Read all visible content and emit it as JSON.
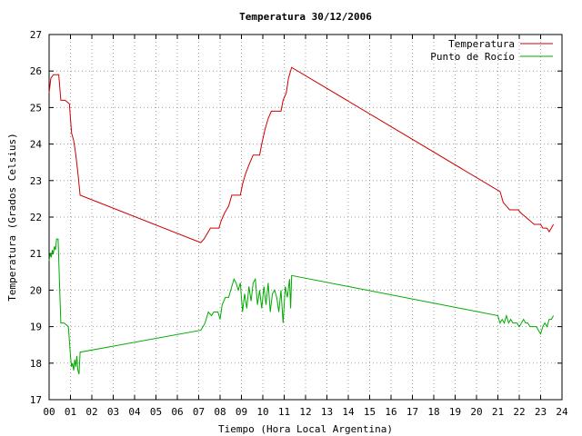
{
  "chart_data": {
    "type": "line",
    "title": "Temperatura 30/12/2006",
    "xlabel": "Tiempo (Hora Local Argentina)",
    "ylabel": "Temperatura (Grados Celsius)",
    "xlim": [
      0,
      24
    ],
    "ylim": [
      17,
      27
    ],
    "x_ticks": [
      "00",
      "01",
      "02",
      "03",
      "04",
      "05",
      "06",
      "07",
      "08",
      "09",
      "10",
      "11",
      "12",
      "13",
      "14",
      "15",
      "16",
      "17",
      "18",
      "19",
      "20",
      "21",
      "22",
      "23",
      "24"
    ],
    "y_ticks": [
      "17",
      "18",
      "19",
      "20",
      "21",
      "22",
      "23",
      "24",
      "25",
      "26",
      "27"
    ],
    "grid": true,
    "legend_position": "top-right",
    "series": [
      {
        "name": "Temperatura",
        "color": "#cc0000",
        "points": [
          [
            0.0,
            25.4
          ],
          [
            0.08,
            25.8
          ],
          [
            0.2,
            25.9
          ],
          [
            0.35,
            25.9
          ],
          [
            0.45,
            25.9
          ],
          [
            0.55,
            25.2
          ],
          [
            0.75,
            25.2
          ],
          [
            0.95,
            25.1
          ],
          [
            1.05,
            24.3
          ],
          [
            1.15,
            24.1
          ],
          [
            1.25,
            23.7
          ],
          [
            1.35,
            23.2
          ],
          [
            1.45,
            22.6
          ],
          [
            7.1,
            21.3
          ],
          [
            7.25,
            21.4
          ],
          [
            7.35,
            21.5
          ],
          [
            7.45,
            21.6
          ],
          [
            7.55,
            21.7
          ],
          [
            7.95,
            21.7
          ],
          [
            8.05,
            21.9
          ],
          [
            8.2,
            22.1
          ],
          [
            8.4,
            22.3
          ],
          [
            8.55,
            22.6
          ],
          [
            8.95,
            22.6
          ],
          [
            9.05,
            22.9
          ],
          [
            9.2,
            23.2
          ],
          [
            9.4,
            23.5
          ],
          [
            9.55,
            23.7
          ],
          [
            9.85,
            23.7
          ],
          [
            9.95,
            24.0
          ],
          [
            10.1,
            24.4
          ],
          [
            10.25,
            24.7
          ],
          [
            10.4,
            24.9
          ],
          [
            10.85,
            24.9
          ],
          [
            10.95,
            25.2
          ],
          [
            11.1,
            25.4
          ],
          [
            11.2,
            25.8
          ],
          [
            11.35,
            26.1
          ],
          [
            21.1,
            22.7
          ],
          [
            21.25,
            22.4
          ],
          [
            21.4,
            22.3
          ],
          [
            21.55,
            22.2
          ],
          [
            21.95,
            22.2
          ],
          [
            22.1,
            22.1
          ],
          [
            22.3,
            22.0
          ],
          [
            22.5,
            21.9
          ],
          [
            22.7,
            21.8
          ],
          [
            23.0,
            21.8
          ],
          [
            23.1,
            21.7
          ],
          [
            23.3,
            21.7
          ],
          [
            23.4,
            21.6
          ],
          [
            23.5,
            21.7
          ],
          [
            23.6,
            21.8
          ]
        ]
      },
      {
        "name": "Punto de Rocío",
        "color": "#00aa00",
        "points": [
          [
            0.0,
            20.8
          ],
          [
            0.05,
            21.0
          ],
          [
            0.1,
            20.9
          ],
          [
            0.15,
            21.1
          ],
          [
            0.2,
            21.0
          ],
          [
            0.25,
            21.2
          ],
          [
            0.3,
            21.1
          ],
          [
            0.35,
            21.4
          ],
          [
            0.42,
            21.4
          ],
          [
            0.48,
            20.3
          ],
          [
            0.55,
            19.1
          ],
          [
            0.7,
            19.1
          ],
          [
            0.9,
            19.0
          ],
          [
            1.0,
            18.2
          ],
          [
            1.05,
            17.9
          ],
          [
            1.1,
            18.0
          ],
          [
            1.15,
            17.8
          ],
          [
            1.2,
            18.1
          ],
          [
            1.25,
            17.9
          ],
          [
            1.3,
            18.2
          ],
          [
            1.35,
            17.8
          ],
          [
            1.4,
            17.7
          ],
          [
            1.45,
            18.3
          ],
          [
            7.1,
            18.9
          ],
          [
            7.2,
            19.0
          ],
          [
            7.3,
            19.1
          ],
          [
            7.45,
            19.4
          ],
          [
            7.6,
            19.3
          ],
          [
            7.7,
            19.4
          ],
          [
            7.9,
            19.4
          ],
          [
            8.0,
            19.2
          ],
          [
            8.1,
            19.6
          ],
          [
            8.25,
            19.8
          ],
          [
            8.4,
            19.8
          ],
          [
            8.55,
            20.1
          ],
          [
            8.65,
            20.3
          ],
          [
            8.75,
            20.2
          ],
          [
            8.85,
            20.0
          ],
          [
            8.95,
            20.2
          ],
          [
            9.05,
            19.4
          ],
          [
            9.15,
            19.9
          ],
          [
            9.25,
            19.5
          ],
          [
            9.35,
            20.1
          ],
          [
            9.45,
            19.7
          ],
          [
            9.55,
            20.2
          ],
          [
            9.65,
            20.3
          ],
          [
            9.75,
            19.6
          ],
          [
            9.85,
            20.0
          ],
          [
            9.95,
            19.5
          ],
          [
            10.05,
            20.1
          ],
          [
            10.15,
            19.6
          ],
          [
            10.25,
            20.2
          ],
          [
            10.35,
            19.4
          ],
          [
            10.45,
            19.9
          ],
          [
            10.55,
            20.0
          ],
          [
            10.65,
            19.8
          ],
          [
            10.75,
            19.4
          ],
          [
            10.85,
            20.0
          ],
          [
            10.95,
            19.1
          ],
          [
            11.05,
            20.1
          ],
          [
            11.15,
            19.8
          ],
          [
            11.25,
            20.3
          ],
          [
            11.3,
            19.5
          ],
          [
            11.35,
            20.4
          ],
          [
            21.0,
            19.3
          ],
          [
            21.05,
            19.2
          ],
          [
            21.1,
            19.1
          ],
          [
            21.2,
            19.2
          ],
          [
            21.3,
            19.1
          ],
          [
            21.4,
            19.3
          ],
          [
            21.5,
            19.1
          ],
          [
            21.6,
            19.2
          ],
          [
            21.7,
            19.1
          ],
          [
            21.9,
            19.1
          ],
          [
            22.0,
            19.0
          ],
          [
            22.1,
            19.1
          ],
          [
            22.2,
            19.2
          ],
          [
            22.3,
            19.1
          ],
          [
            22.4,
            19.1
          ],
          [
            22.5,
            19.0
          ],
          [
            22.6,
            19.0
          ],
          [
            22.8,
            19.0
          ],
          [
            22.9,
            18.9
          ],
          [
            23.0,
            18.8
          ],
          [
            23.1,
            19.0
          ],
          [
            23.2,
            19.1
          ],
          [
            23.3,
            19.0
          ],
          [
            23.4,
            19.2
          ],
          [
            23.5,
            19.2
          ],
          [
            23.6,
            19.3
          ]
        ]
      }
    ]
  }
}
